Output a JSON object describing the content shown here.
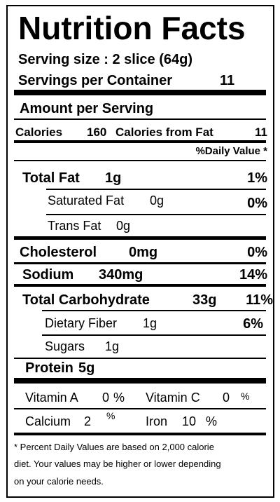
{
  "title": "Nutrition Facts",
  "serving_size": "Serving size : 2 slice (64g)",
  "servings_per_container": {
    "label": "Servings per Container",
    "value": 11
  },
  "amount_per_serving": "Amount per Serving",
  "calories": {
    "label": "Calories",
    "value": 160,
    "from_fat_label": "Calories from Fat",
    "from_fat_value": 11
  },
  "daily_value_header": "%Daily Value *",
  "nutrients": [
    {
      "name": "Total Fat",
      "amount": "1g",
      "daily_value": "1%"
    },
    {
      "name": "Saturated Fat",
      "amount": "0g",
      "daily_value": "0%"
    },
    {
      "name": "Trans Fat",
      "amount": "0g"
    },
    {
      "name": "Cholesterol",
      "amount": "0mg",
      "daily_value": "0%"
    },
    {
      "name": "Sodium",
      "amount": "340mg",
      "daily_value": "14%"
    },
    {
      "name": "Total Carbohydrate",
      "amount": "33g",
      "daily_value": "11%"
    },
    {
      "name": "Dietary Fiber",
      "amount": "1g",
      "daily_value": "6%"
    },
    {
      "name": "Sugars",
      "amount": "1g"
    },
    {
      "name": "Protein",
      "amount": "5g"
    }
  ],
  "vitamins": [
    {
      "name": "Vitamin A",
      "value": 0,
      "unit": "%"
    },
    {
      "name": "Vitamin C",
      "value": 0,
      "unit": "%"
    },
    {
      "name": "Calcium",
      "value": 2,
      "unit": "%"
    },
    {
      "name": "Iron",
      "value": 10,
      "unit": "%"
    }
  ],
  "footnote": [
    "* Percent Daily Values are based on 2,000 calorie",
    "diet. Your values may be higher or lower depending",
    "on your calorie needs."
  ]
}
